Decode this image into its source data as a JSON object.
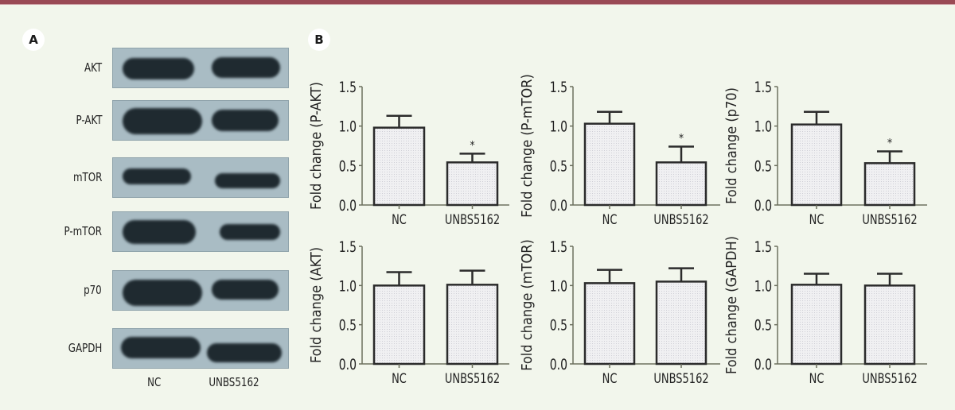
{
  "figure": {
    "panel_a_label": "A",
    "panel_b_label": "B",
    "accent_color": "#9a4a55",
    "background_color": "#f2f6ec"
  },
  "western_blot": {
    "proteins": [
      "AKT",
      "P-AKT",
      "mTOR",
      "P-mTOR",
      "p70",
      "GAPDH"
    ],
    "lanes": [
      "NC",
      "UNBS5162"
    ]
  },
  "chart_data": [
    {
      "type": "bar",
      "title": "",
      "ylabel": "Fold change (P-AKT)",
      "xlabel": "",
      "categories": [
        "NC",
        "UNBS5162"
      ],
      "values": [
        0.98,
        0.54
      ],
      "error": [
        0.15,
        0.11
      ],
      "significance": [
        "",
        "*"
      ],
      "ylim": [
        0,
        1.5
      ],
      "yticks": [
        "0.0",
        "0.5",
        "1.0",
        "1.5"
      ],
      "grid": false
    },
    {
      "type": "bar",
      "title": "",
      "ylabel": "Fold change (P-mTOR)",
      "xlabel": "",
      "categories": [
        "NC",
        "UNBS5162"
      ],
      "values": [
        1.03,
        0.54
      ],
      "error": [
        0.15,
        0.2
      ],
      "significance": [
        "",
        "*"
      ],
      "ylim": [
        0,
        1.5
      ],
      "yticks": [
        "0.0",
        "0.5",
        "1.0",
        "1.5"
      ],
      "grid": false
    },
    {
      "type": "bar",
      "title": "",
      "ylabel": "Fold change (p70)",
      "xlabel": "",
      "categories": [
        "NC",
        "UNBS5162"
      ],
      "values": [
        1.02,
        0.53
      ],
      "error": [
        0.16,
        0.15
      ],
      "significance": [
        "",
        "*"
      ],
      "ylim": [
        0,
        1.5
      ],
      "yticks": [
        "0.0",
        "0.5",
        "1.0",
        "1.5"
      ],
      "grid": false
    },
    {
      "type": "bar",
      "title": "",
      "ylabel": "Fold change (AKT)",
      "xlabel": "",
      "categories": [
        "NC",
        "UNBS5162"
      ],
      "values": [
        1.0,
        1.01
      ],
      "error": [
        0.17,
        0.18
      ],
      "significance": [
        "",
        ""
      ],
      "ylim": [
        0,
        1.5
      ],
      "yticks": [
        "0.0",
        "0.5",
        "1.0",
        "1.5"
      ],
      "grid": false
    },
    {
      "type": "bar",
      "title": "",
      "ylabel": "Fold change (mTOR)",
      "xlabel": "",
      "categories": [
        "NC",
        "UNBS5162"
      ],
      "values": [
        1.03,
        1.05
      ],
      "error": [
        0.17,
        0.17
      ],
      "significance": [
        "",
        ""
      ],
      "ylim": [
        0,
        1.5
      ],
      "yticks": [
        "0.0",
        "0.5",
        "1.0",
        "1.5"
      ],
      "grid": false
    },
    {
      "type": "bar",
      "title": "",
      "ylabel": "Fold change (GAPDH)",
      "xlabel": "",
      "categories": [
        "NC",
        "UNBS5162"
      ],
      "values": [
        1.01,
        1.0
      ],
      "error": [
        0.14,
        0.15
      ],
      "significance": [
        "",
        ""
      ],
      "ylim": [
        0,
        1.5
      ],
      "yticks": [
        "0.0",
        "0.5",
        "1.0",
        "1.5"
      ],
      "grid": false
    }
  ]
}
